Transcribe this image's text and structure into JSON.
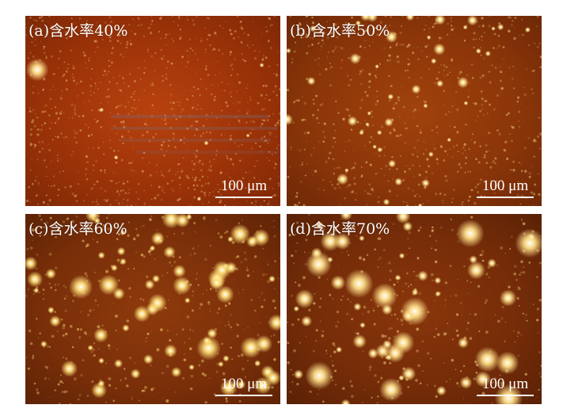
{
  "figure": {
    "panels": [
      {
        "id": "a",
        "label": "(a)含水率40%",
        "scale_bar": "100 μm",
        "base_color": "#a8390b",
        "particle_color": "#ffe08a"
      },
      {
        "id": "b",
        "label": "(b)含水率50%",
        "scale_bar": "100 μm",
        "base_color": "#8f3709",
        "particle_color": "#ffe58f"
      },
      {
        "id": "c",
        "label": "(c)含水率60%",
        "scale_bar": "100 μm",
        "base_color": "#7c3009",
        "particle_color": "#ffdf7a"
      },
      {
        "id": "d",
        "label": "(d)含水率70%",
        "scale_bar": "100 μm",
        "base_color": "#762d08",
        "particle_color": "#ffe08a"
      }
    ]
  }
}
